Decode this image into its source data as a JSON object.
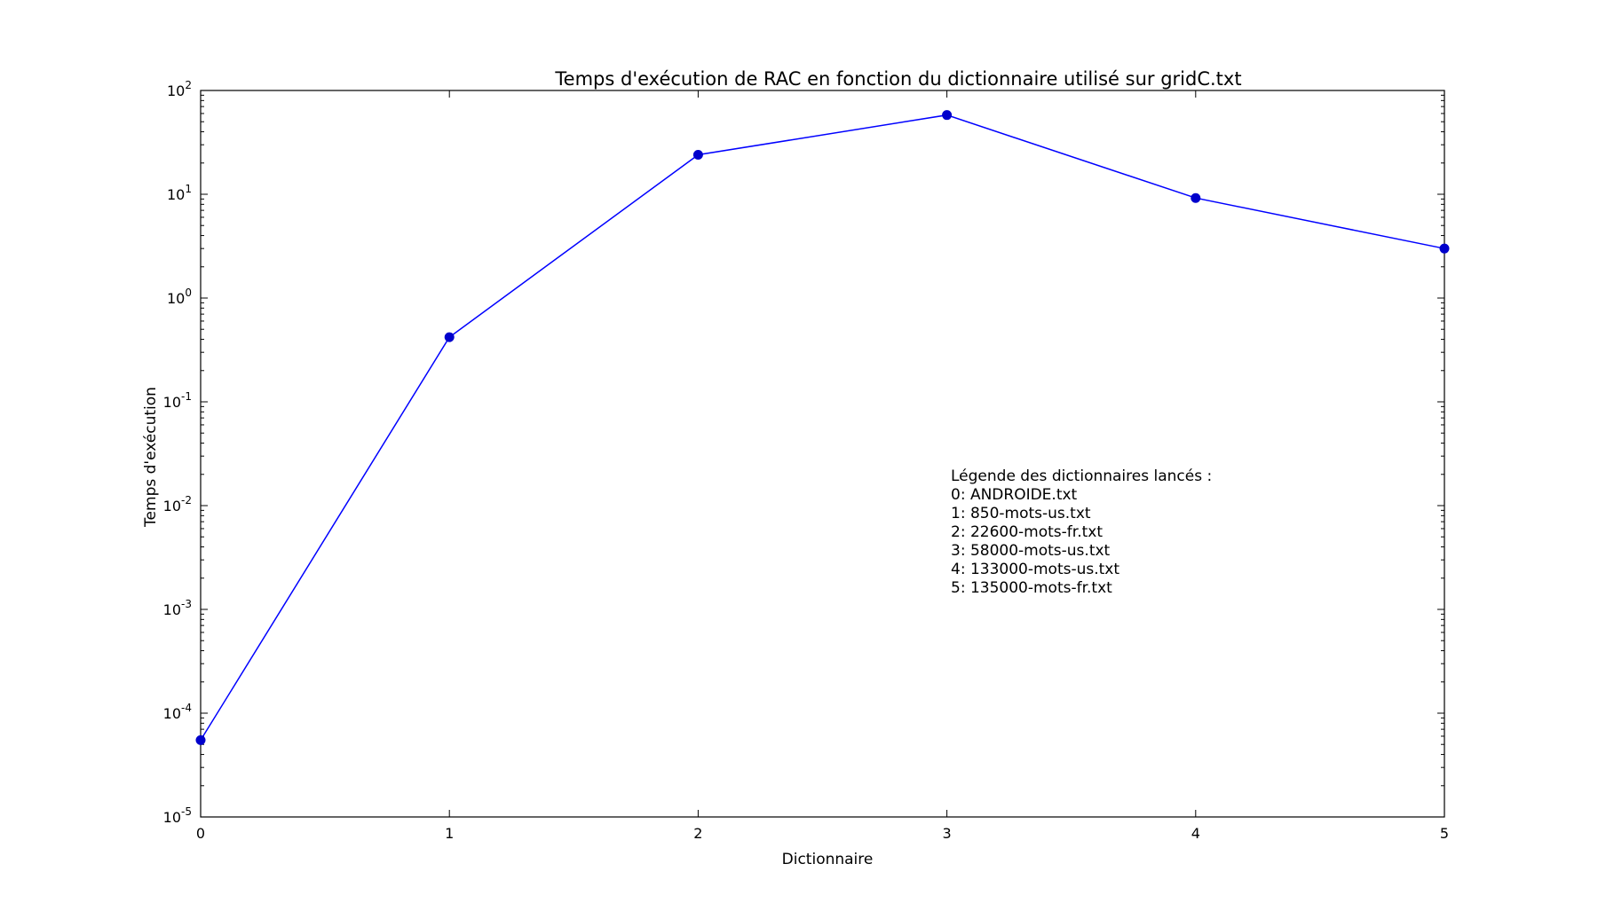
{
  "chart_data": {
    "type": "line",
    "title": "Temps d'exécution de RAC en fonction du dictionnaire utilisé sur gridC.txt",
    "xlabel": "Dictionnaire",
    "ylabel": "Temps d'exécution",
    "x": [
      0,
      1,
      2,
      3,
      4,
      5
    ],
    "xlim": [
      0,
      5
    ],
    "yscale": "log",
    "ylim": [
      1e-05,
      100
    ],
    "xticks": [
      "0",
      "1",
      "2",
      "3",
      "4",
      "5"
    ],
    "yticks": [
      {
        "base": "10",
        "exp": "2",
        "value": 100
      },
      {
        "base": "10",
        "exp": "1",
        "value": 10
      },
      {
        "base": "10",
        "exp": "0",
        "value": 1
      },
      {
        "base": "10",
        "exp": "-1",
        "value": 0.1
      },
      {
        "base": "10",
        "exp": "-2",
        "value": 0.01
      },
      {
        "base": "10",
        "exp": "-3",
        "value": 0.001
      },
      {
        "base": "10",
        "exp": "-4",
        "value": 0.0001
      },
      {
        "base": "10",
        "exp": "-5",
        "value": 1e-05
      }
    ],
    "series": [
      {
        "values": [
          5.5e-05,
          0.42,
          24,
          58,
          9.2,
          3.0
        ],
        "color": "#0000ff",
        "marker": "circle",
        "marker_color": "#0000cc"
      }
    ],
    "grid": false,
    "annotation": {
      "title": "Légende des dictionnaires lancés :",
      "lines": [
        "0: ANDROIDE.txt",
        "1: 850-mots-us.txt",
        "2: 22600-mots-fr.txt",
        "3: 58000-mots-us.txt",
        "4: 133000-mots-us.txt",
        "5: 135000-mots-fr.txt"
      ]
    }
  }
}
